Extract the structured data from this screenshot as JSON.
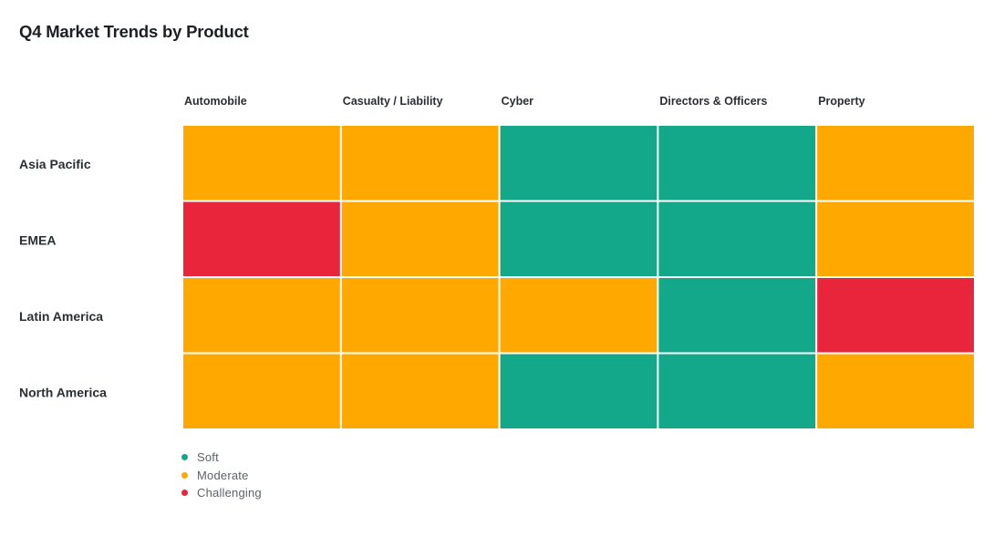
{
  "chart_data": {
    "type": "heatmap",
    "title": "Q4 Market Trends by Product",
    "columns": [
      "Automobile",
      "Casualty / Liability",
      "Cyber",
      "Directors & Officers",
      "Property"
    ],
    "rows": [
      "Asia Pacific",
      "EMEA",
      "Latin America",
      "North America"
    ],
    "values": [
      [
        "Moderate",
        "Moderate",
        "Soft",
        "Soft",
        "Moderate"
      ],
      [
        "Challenging",
        "Moderate",
        "Soft",
        "Soft",
        "Moderate"
      ],
      [
        "Moderate",
        "Moderate",
        "Moderate",
        "Soft",
        "Challenging"
      ],
      [
        "Moderate",
        "Moderate",
        "Soft",
        "Soft",
        "Moderate"
      ]
    ],
    "legend": [
      {
        "label": "Soft",
        "color": "#13a88a"
      },
      {
        "label": "Moderate",
        "color": "#ffa800"
      },
      {
        "label": "Challenging",
        "color": "#e8253b"
      }
    ],
    "legend_placement": "bottom-left",
    "grid": false
  }
}
